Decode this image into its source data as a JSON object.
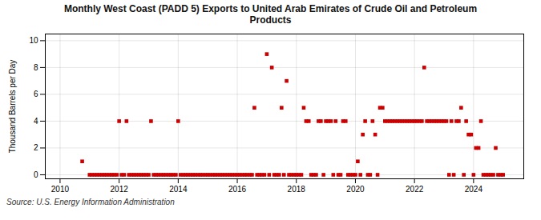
{
  "chart_data": {
    "type": "scatter",
    "title": "Monthly West Coast (PADD 5) Exports to United Arab Emirates of Crude Oil and Petroleum\nProducts",
    "ylabel": "Thousand Barrels per Day",
    "source": "Source: U.S. Energy Information Administration",
    "color": "#cc0000",
    "marker": "square",
    "grid": true,
    "xlim": [
      2009.5,
      2025.7
    ],
    "ylim": [
      -0.3,
      10.5
    ],
    "xticks": [
      2010,
      2012,
      2014,
      2016,
      2018,
      2020,
      2022,
      2024
    ],
    "yticks": [
      0,
      2,
      4,
      6,
      8,
      10
    ],
    "x": [
      2010.75,
      2011.0,
      2011.08,
      2011.17,
      2011.25,
      2011.33,
      2011.42,
      2011.5,
      2011.58,
      2011.67,
      2011.75,
      2011.83,
      2011.92,
      2012.0,
      2012.08,
      2012.17,
      2012.25,
      2012.33,
      2012.42,
      2012.5,
      2012.58,
      2012.67,
      2012.75,
      2012.83,
      2012.92,
      2013.0,
      2013.08,
      2013.17,
      2013.25,
      2013.33,
      2013.42,
      2013.5,
      2013.58,
      2013.67,
      2013.75,
      2013.83,
      2013.92,
      2014.0,
      2014.08,
      2014.17,
      2014.25,
      2014.33,
      2014.42,
      2014.5,
      2014.58,
      2014.67,
      2014.75,
      2014.83,
      2014.92,
      2015.0,
      2015.08,
      2015.17,
      2015.25,
      2015.33,
      2015.42,
      2015.5,
      2015.58,
      2015.67,
      2015.75,
      2015.83,
      2015.92,
      2016.0,
      2016.08,
      2016.17,
      2016.25,
      2016.33,
      2016.42,
      2016.5,
      2016.58,
      2016.67,
      2016.75,
      2016.83,
      2016.92,
      2017.0,
      2017.08,
      2017.17,
      2017.25,
      2017.33,
      2017.42,
      2017.5,
      2017.58,
      2017.67,
      2017.75,
      2017.83,
      2017.92,
      2018.0,
      2018.08,
      2018.17,
      2018.25,
      2018.33,
      2018.42,
      2018.5,
      2018.58,
      2018.67,
      2018.75,
      2018.83,
      2018.92,
      2019.0,
      2019.08,
      2019.17,
      2019.25,
      2019.33,
      2019.42,
      2019.5,
      2019.58,
      2019.67,
      2019.75,
      2019.83,
      2019.92,
      2020.0,
      2020.08,
      2020.17,
      2020.25,
      2020.33,
      2020.42,
      2020.5,
      2020.58,
      2020.67,
      2020.75,
      2020.83,
      2020.92,
      2021.0,
      2021.08,
      2021.17,
      2021.25,
      2021.33,
      2021.42,
      2021.5,
      2021.58,
      2021.67,
      2021.75,
      2021.83,
      2021.92,
      2022.0,
      2022.08,
      2022.17,
      2022.25,
      2022.33,
      2022.42,
      2022.5,
      2022.58,
      2022.67,
      2022.75,
      2022.83,
      2022.92,
      2023.0,
      2023.08,
      2023.17,
      2023.25,
      2023.33,
      2023.42,
      2023.5,
      2023.58,
      2023.67,
      2023.75,
      2023.83,
      2023.92,
      2024.0,
      2024.08,
      2024.17,
      2024.25,
      2024.33,
      2024.42,
      2024.5,
      2024.58,
      2024.67,
      2024.75,
      2024.83,
      2024.92,
      2025.0
    ],
    "values": [
      1,
      0,
      0,
      0,
      0,
      0,
      0,
      0,
      0,
      0,
      0,
      0,
      0,
      4,
      0,
      0,
      4,
      0,
      0,
      0,
      0,
      0,
      0,
      0,
      0,
      0,
      4,
      0,
      0,
      0,
      0,
      0,
      0,
      0,
      0,
      0,
      0,
      4,
      0,
      0,
      0,
      0,
      0,
      0,
      0,
      0,
      0,
      0,
      0,
      0,
      0,
      0,
      0,
      0,
      0,
      0,
      0,
      0,
      0,
      0,
      0,
      0,
      0,
      0,
      0,
      0,
      0,
      0,
      5,
      0,
      0,
      0,
      0,
      9,
      0,
      8,
      0,
      0,
      0,
      5,
      0,
      7,
      0,
      0,
      0,
      0,
      0,
      0,
      5,
      4,
      4,
      0,
      0,
      0,
      4,
      4,
      0,
      4,
      4,
      4,
      0,
      4,
      0,
      0,
      4,
      4,
      0,
      0,
      0,
      0,
      1,
      0,
      3,
      4,
      0,
      0,
      4,
      3,
      0,
      5,
      5,
      4,
      4,
      4,
      4,
      4,
      4,
      4,
      4,
      4,
      4,
      4,
      4,
      4,
      4,
      4,
      4,
      8,
      4,
      4,
      4,
      4,
      4,
      4,
      4,
      4,
      4,
      0,
      4,
      0,
      4,
      4,
      5,
      0,
      4,
      3,
      3,
      0,
      2,
      2,
      4,
      0,
      0,
      0,
      0,
      0,
      2,
      0,
      0,
      0
    ]
  }
}
